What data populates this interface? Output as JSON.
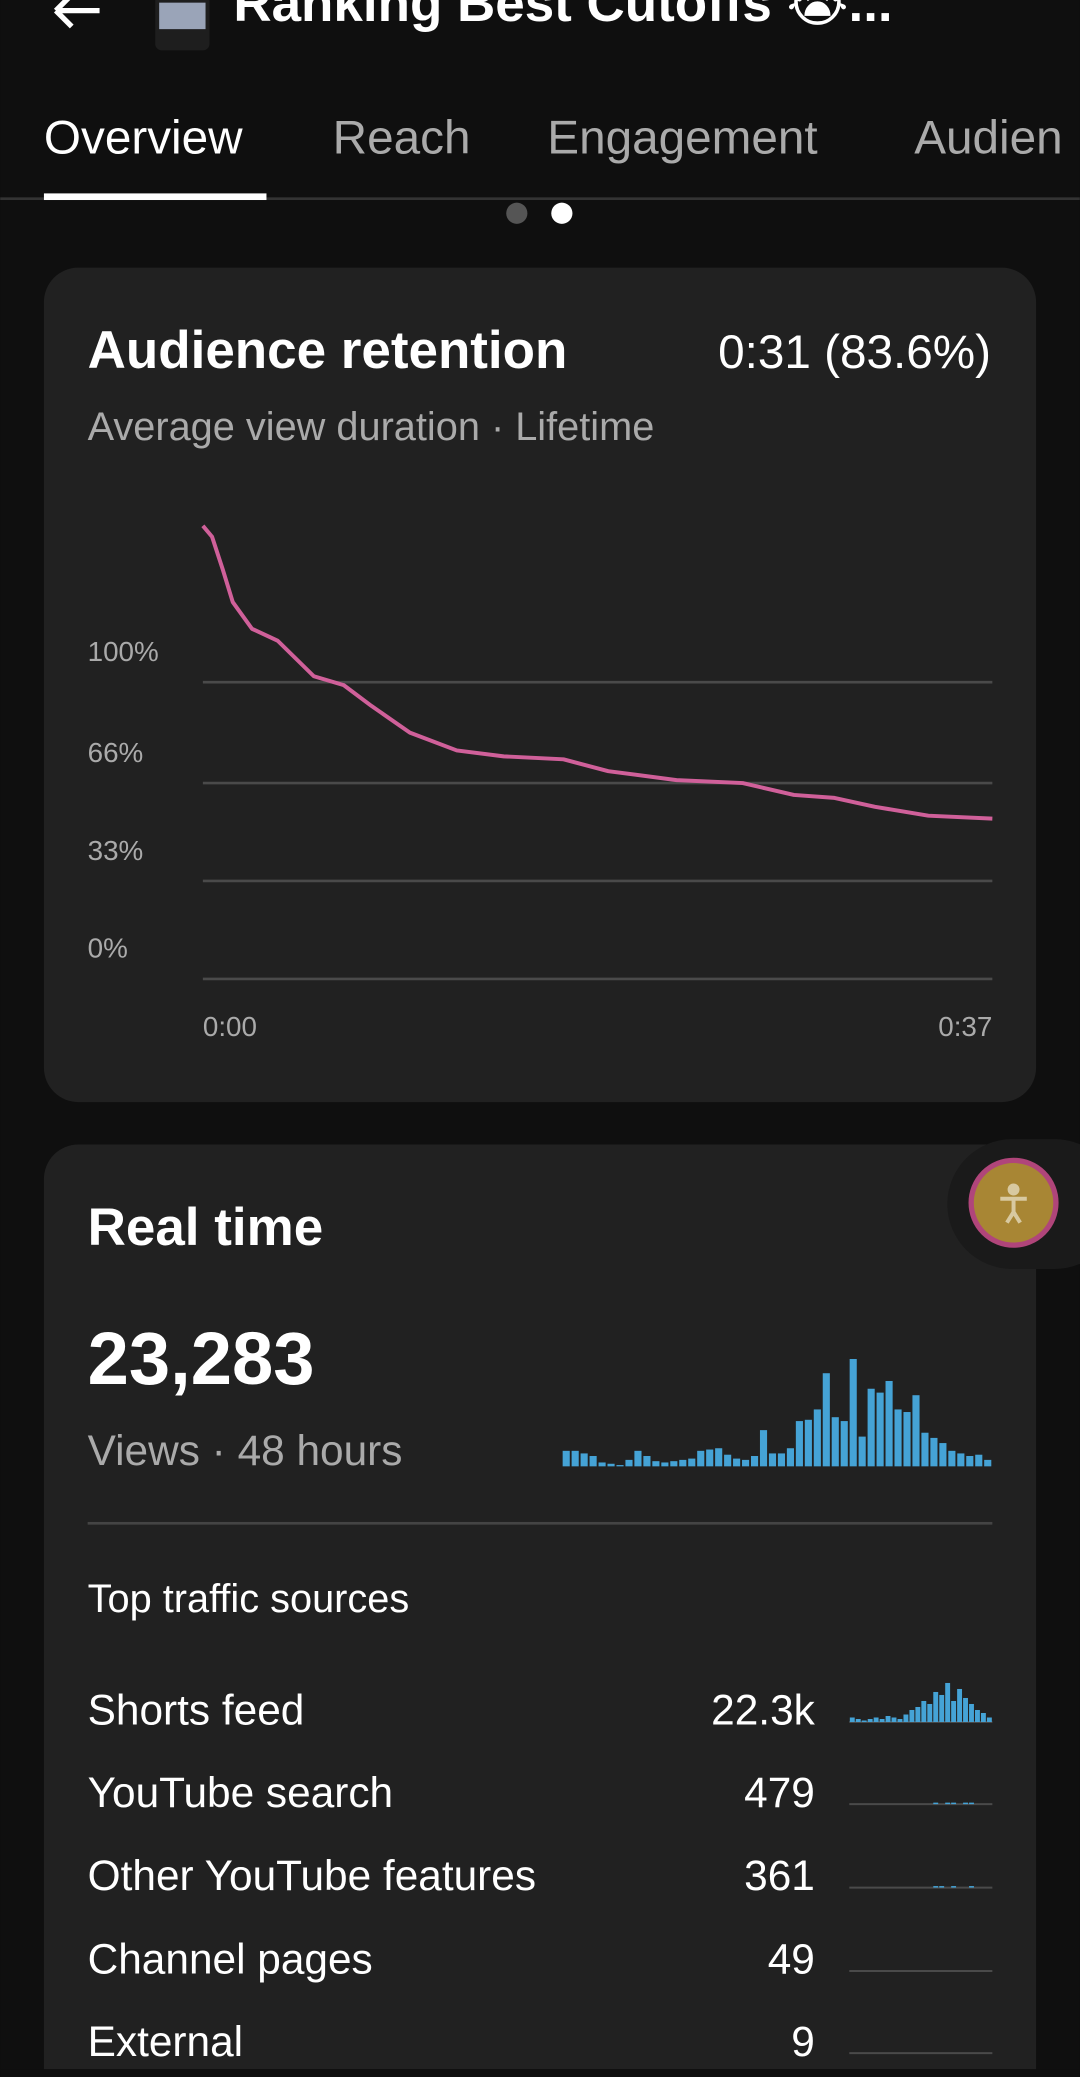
{
  "header": {
    "title": "Ranking Best Cutoffs 😭..."
  },
  "tabs": [
    "Overview",
    "Reach",
    "Engagement",
    "Audien"
  ],
  "retention": {
    "title": "Audience retention",
    "value": "0:31 (83.6%)",
    "subtitle": "Average view duration · Lifetime",
    "chart": {
      "type": "line",
      "color": "#d0609a",
      "x": [
        0,
        0.43,
        0.93,
        1.4,
        2.3,
        3.5,
        5.2,
        6.6,
        7.9,
        9.7,
        11.9,
        14.1,
        16.9,
        19.0,
        22.2,
        25.3,
        27.7,
        29.6,
        31.5,
        34.0,
        37
      ],
      "values": [
        152.7,
        149,
        138,
        127,
        118,
        114,
        102,
        99,
        92,
        83,
        77,
        75,
        74,
        70,
        67,
        66,
        62,
        61,
        58,
        55,
        54
      ],
      "xlim": [
        0,
        37
      ],
      "xticks": [
        {
          "value": 0,
          "label": "0:00"
        },
        {
          "value": 37,
          "label": "0:37"
        }
      ],
      "ylim": [
        0,
        160
      ],
      "yticks": [
        {
          "value": 0,
          "label": "0%"
        },
        {
          "value": 33,
          "label": "33%"
        },
        {
          "value": 66,
          "label": "66%"
        },
        {
          "value": 100,
          "label": "100%"
        }
      ],
      "grid": true
    }
  },
  "realtime": {
    "title": "Real time",
    "value": "23,283",
    "subtitle": "Views · 48 hours",
    "chart": {
      "type": "bar",
      "color": "#45a3d6",
      "ylim": [
        0,
        85
      ],
      "values": [
        12,
        12,
        10,
        8,
        3,
        2,
        1,
        5,
        12,
        8,
        4,
        3,
        4,
        5,
        6,
        12,
        13,
        14,
        9,
        6,
        5,
        8,
        28,
        10,
        10,
        14,
        35,
        36,
        44,
        72,
        38,
        35,
        83,
        23,
        60,
        57,
        66,
        44,
        42,
        55,
        26,
        22,
        18,
        12,
        10,
        8,
        9,
        5
      ]
    },
    "traffic_title": "Top traffic sources",
    "sources": [
      {
        "name": "Shorts feed",
        "value": "22.3k",
        "spark": [
          3,
          2,
          1,
          2,
          3,
          2,
          4,
          3,
          2,
          5,
          8,
          10,
          14,
          12,
          20,
          18,
          26,
          14,
          22,
          16,
          12,
          8,
          6,
          3
        ]
      },
      {
        "name": "YouTube search",
        "value": "479",
        "spark": [
          0,
          0,
          0,
          0,
          0,
          0,
          0,
          0,
          0,
          0,
          0,
          0,
          0,
          0,
          1,
          0,
          1,
          1,
          0,
          1,
          1,
          0,
          0,
          0
        ]
      },
      {
        "name": "Other YouTube features",
        "value": "361",
        "spark": [
          0,
          0,
          0,
          0,
          0,
          0,
          0,
          0,
          0,
          0,
          0,
          0,
          0,
          0,
          1,
          1,
          0,
          1,
          0,
          0,
          1,
          0,
          0,
          0
        ]
      },
      {
        "name": "Channel pages",
        "value": "49",
        "spark": [
          0,
          0,
          0,
          0,
          0,
          0,
          0,
          0,
          0,
          0,
          0,
          0,
          0,
          0,
          0,
          0,
          0,
          0,
          0,
          0,
          0,
          0,
          0,
          0
        ]
      },
      {
        "name": "External",
        "value": "9",
        "spark": [
          0,
          0,
          0,
          0,
          0,
          0,
          0,
          0,
          0,
          0,
          0,
          0,
          0,
          0,
          0,
          0,
          0,
          0,
          0,
          0,
          0,
          0,
          0,
          0
        ]
      }
    ],
    "spark_ylim": [
      0,
      30
    ]
  }
}
